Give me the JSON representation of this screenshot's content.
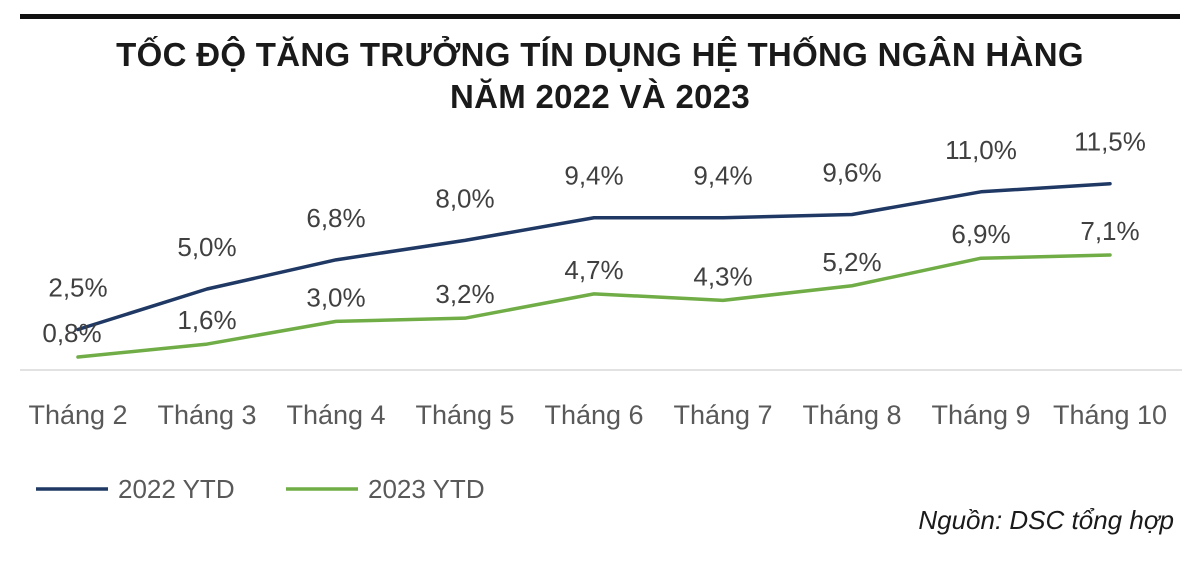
{
  "title_line1": "TỐC ĐỘ TĂNG TRƯỞNG TÍN DỤNG HỆ THỐNG NGÂN HÀNG",
  "title_line2": "NĂM 2022 VÀ 2023",
  "source": "Nguồn: DSC tổng hợp",
  "chart_data": {
    "type": "line",
    "title": "TỐC ĐỘ TĂNG TRƯỞNG TÍN DỤNG HỆ THỐNG NGÂN HÀNG NĂM 2022 VÀ 2023",
    "categories": [
      "Tháng 2",
      "Tháng 3",
      "Tháng 4",
      "Tháng 5",
      "Tháng 6",
      "Tháng 7",
      "Tháng 8",
      "Tháng 9",
      "Tháng 10"
    ],
    "series": [
      {
        "name": "2022 YTD",
        "color": "#1f3864",
        "values": [
          2.5,
          5.0,
          6.8,
          8.0,
          9.4,
          9.4,
          9.6,
          11.0,
          11.5
        ],
        "labels": [
          "2,5%",
          "5,0%",
          "6,8%",
          "8,0%",
          "9,4%",
          "9,4%",
          "9,6%",
          "11,0%",
          "11,5%"
        ]
      },
      {
        "name": "2023 YTD",
        "color": "#70ad47",
        "values": [
          0.8,
          1.6,
          3.0,
          3.2,
          4.7,
          4.3,
          5.2,
          6.9,
          7.1
        ],
        "labels": [
          "0,8%",
          "1,6%",
          "3,0%",
          "3,2%",
          "4,7%",
          "4,3%",
          "5,2%",
          "6,9%",
          "7,1%"
        ]
      }
    ],
    "xlabel": "",
    "ylabel": "",
    "ylim": [
      0,
      12
    ],
    "grid": false,
    "legend_position": "bottom-left"
  }
}
